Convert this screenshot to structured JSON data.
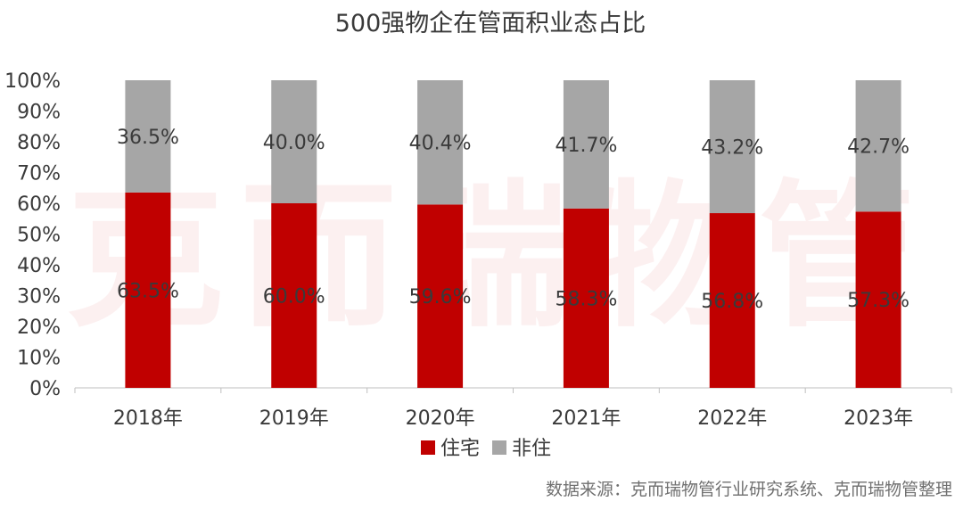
{
  "colors": {
    "residential": "#c00000",
    "non_residential": "#a6a6a6",
    "text": "#3a3a3a",
    "axis": "#bfbfbf"
  },
  "watermark": "克而瑞物管",
  "source": "数据来源：克而瑞物管行业研究系统、克而瑞物管整理",
  "chart_data": {
    "type": "bar",
    "stacked": true,
    "title": "500强物企在管面积业态占比",
    "xlabel": "",
    "ylabel": "",
    "categories": [
      "2018年",
      "2019年",
      "2020年",
      "2021年",
      "2022年",
      "2023年"
    ],
    "series": [
      {
        "name": "住宅",
        "values": [
          63.5,
          60.0,
          59.6,
          58.3,
          56.8,
          57.3
        ],
        "labels": [
          "63.5%",
          "60.0%",
          "59.6%",
          "58.3%",
          "56.8%",
          "57.3%"
        ]
      },
      {
        "name": "非住",
        "values": [
          36.5,
          40.0,
          40.4,
          41.7,
          43.2,
          42.7
        ],
        "labels": [
          "36.5%",
          "40.0%",
          "40.4%",
          "41.7%",
          "43.2%",
          "42.7%"
        ]
      }
    ],
    "ylim": [
      0,
      100
    ],
    "yticks": [
      0,
      10,
      20,
      30,
      40,
      50,
      60,
      70,
      80,
      90,
      100
    ],
    "ytick_labels": [
      "0%",
      "10%",
      "20%",
      "30%",
      "40%",
      "50%",
      "60%",
      "70%",
      "80%",
      "90%",
      "100%"
    ],
    "legend": [
      "住宅",
      "非住"
    ],
    "legend_position": "bottom",
    "grid": false
  }
}
